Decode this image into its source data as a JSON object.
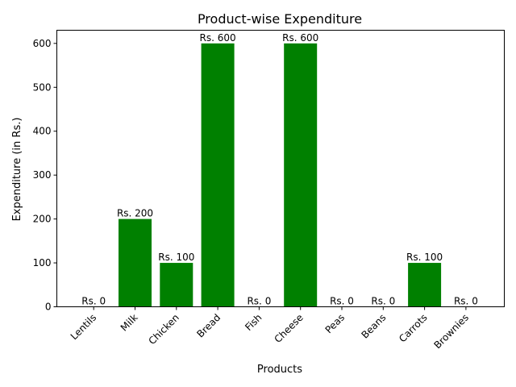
{
  "chart_data": {
    "type": "bar",
    "title": "Product-wise Expenditure",
    "xlabel": "Products",
    "ylabel": "Expenditure (in Rs.)",
    "categories": [
      "Lentils",
      "Milk",
      "Chicken",
      "Bread",
      "Fish",
      "Cheese",
      "Peas",
      "Beans",
      "Carrots",
      "Brownies"
    ],
    "values": [
      0,
      200,
      100,
      600,
      0,
      600,
      0,
      0,
      100,
      0
    ],
    "data_labels": [
      "Rs. 0",
      "Rs. 200",
      "Rs. 100",
      "Rs. 600",
      "Rs. 0",
      "Rs. 600",
      "Rs. 0",
      "Rs. 0",
      "Rs. 100",
      "Rs. 0"
    ],
    "ylim": [
      0,
      630
    ],
    "yticks": [
      0,
      100,
      200,
      300,
      400,
      500,
      600
    ],
    "bar_color": "#008000",
    "grid": false,
    "legend": "none"
  }
}
